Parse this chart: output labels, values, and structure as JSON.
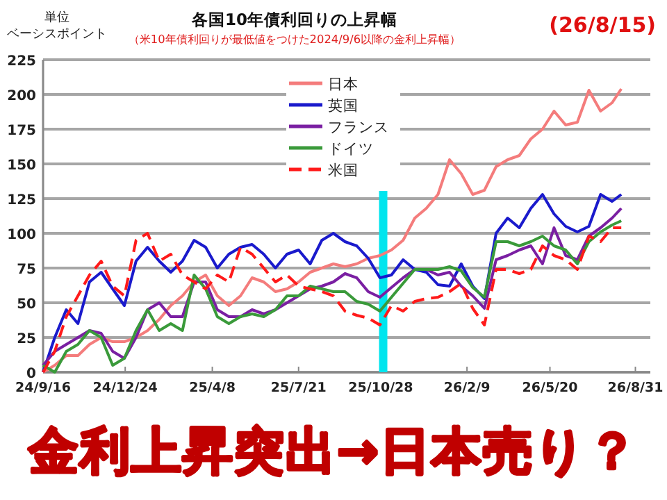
{
  "chart_data": {
    "type": "line",
    "title": "各国10年債利回りの上昇幅",
    "subtitle": "（米10年債利回りが最低値をつけた2024/9/6以降の金利上昇幅）",
    "ylabel": "ベーシスポイント",
    "annotations": [
      "単位",
      "(26/8/15)",
      "金利上昇突出→日本売り？"
    ],
    "x": [
      "2024-09-16",
      "2024-09-30",
      "2024-10-14",
      "2024-10-28",
      "2024-11-11",
      "2024-11-25",
      "2024-12-09",
      "2024-12-23",
      "2025-01-06",
      "2025-01-20",
      "2025-02-03",
      "2025-02-17",
      "2025-03-03",
      "2025-03-17",
      "2025-03-31",
      "2025-04-14",
      "2025-04-28",
      "2025-05-12",
      "2025-05-26",
      "2025-06-09",
      "2025-06-23",
      "2025-07-07",
      "2025-07-21",
      "2025-08-04",
      "2025-08-18",
      "2025-09-01",
      "2025-09-15",
      "2025-09-29",
      "2025-10-13",
      "2025-10-27",
      "2025-11-10",
      "2025-11-24",
      "2025-12-08",
      "2025-12-22",
      "2026-01-05",
      "2026-01-19",
      "2026-02-02",
      "2026-02-16",
      "2026-03-02",
      "2026-03-16",
      "2026-03-30",
      "2026-04-13",
      "2026-04-27",
      "2026-05-11",
      "2026-05-25",
      "2026-06-08",
      "2026-06-22",
      "2026-07-06",
      "2026-07-20",
      "2026-08-03",
      "2026-08-14"
    ],
    "series": [
      {
        "name": "日本",
        "color": "#f47c7c",
        "values": [
          0,
          5,
          12,
          12,
          20,
          25,
          22,
          22,
          25,
          30,
          38,
          48,
          55,
          65,
          70,
          55,
          48,
          55,
          68,
          65,
          58,
          60,
          65,
          72,
          75,
          78,
          76,
          78,
          82,
          84,
          88,
          95,
          111,
          118,
          128,
          153,
          143,
          128,
          131,
          148,
          153,
          156,
          168,
          175,
          188,
          178,
          180,
          203,
          188,
          194,
          204
        ]
      },
      {
        "name": "英国",
        "color": "#1a1acc",
        "values": [
          0,
          25,
          45,
          35,
          65,
          72,
          60,
          48,
          80,
          90,
          80,
          72,
          80,
          95,
          90,
          75,
          85,
          90,
          92,
          85,
          75,
          85,
          88,
          78,
          95,
          100,
          94,
          91,
          82,
          68,
          70,
          81,
          74,
          72,
          63,
          62,
          78,
          62,
          53,
          100,
          111,
          104,
          118,
          128,
          114,
          105,
          101,
          105,
          128,
          123,
          128
        ]
      },
      {
        "name": "フランス",
        "color": "#7a1fa2",
        "values": [
          5,
          15,
          20,
          25,
          30,
          28,
          15,
          10,
          25,
          45,
          50,
          40,
          40,
          65,
          65,
          45,
          40,
          40,
          45,
          42,
          45,
          50,
          55,
          60,
          62,
          65,
          71,
          68,
          58,
          54,
          61,
          68,
          74,
          74,
          70,
          72,
          62,
          55,
          46,
          81,
          84,
          88,
          91,
          78,
          104,
          84,
          81,
          98,
          104,
          111,
          118
        ]
      },
      {
        "name": "ドイツ",
        "color": "#3a9a3a",
        "values": [
          5,
          0,
          15,
          20,
          30,
          25,
          5,
          10,
          30,
          45,
          30,
          35,
          30,
          70,
          60,
          40,
          35,
          40,
          42,
          40,
          45,
          55,
          55,
          62,
          60,
          58,
          58,
          51,
          49,
          44,
          54,
          64,
          74,
          74,
          74,
          76,
          73,
          61,
          54,
          94,
          94,
          91,
          94,
          98,
          91,
          88,
          78,
          94,
          101,
          106,
          109
        ]
      },
      {
        "name": "米国",
        "color": "#ff1a1a",
        "line_style": "dashed",
        "values": [
          0,
          15,
          40,
          55,
          70,
          80,
          62,
          55,
          95,
          100,
          80,
          85,
          70,
          65,
          60,
          70,
          65,
          90,
          85,
          75,
          65,
          70,
          62,
          60,
          58,
          55,
          44,
          41,
          39,
          34,
          48,
          44,
          51,
          53,
          54,
          58,
          64,
          46,
          34,
          74,
          74,
          71,
          74,
          91,
          84,
          81,
          74,
          98,
          94,
          104,
          104
        ]
      }
    ],
    "xlim": [
      "2024-09-16",
      "2026-09-18"
    ],
    "xticks": [
      {
        "value": "2024-09-16",
        "label": "24/9/16"
      },
      {
        "value": "2024-12-24",
        "label": "24/12/24"
      },
      {
        "value": "2025-04-08",
        "label": "25/4/8"
      },
      {
        "value": "2025-07-21",
        "label": "25/7/21"
      },
      {
        "value": "2025-10-28",
        "label": "25/10/28"
      },
      {
        "value": "2026-02-09",
        "label": "26/2/9"
      },
      {
        "value": "2026-05-20",
        "label": "26/5/20"
      },
      {
        "value": "2026-08-31",
        "label": "26/8/31"
      }
    ],
    "ylim": [
      0,
      225
    ],
    "yticks": [
      0,
      25,
      50,
      75,
      100,
      125,
      150,
      175,
      200,
      225
    ],
    "grid": "y",
    "legend": "top",
    "bands": [
      {
        "axis": "x",
        "from": "2025-10-26",
        "to": "2025-11-05",
        "color": "#00e5ee"
      }
    ]
  }
}
